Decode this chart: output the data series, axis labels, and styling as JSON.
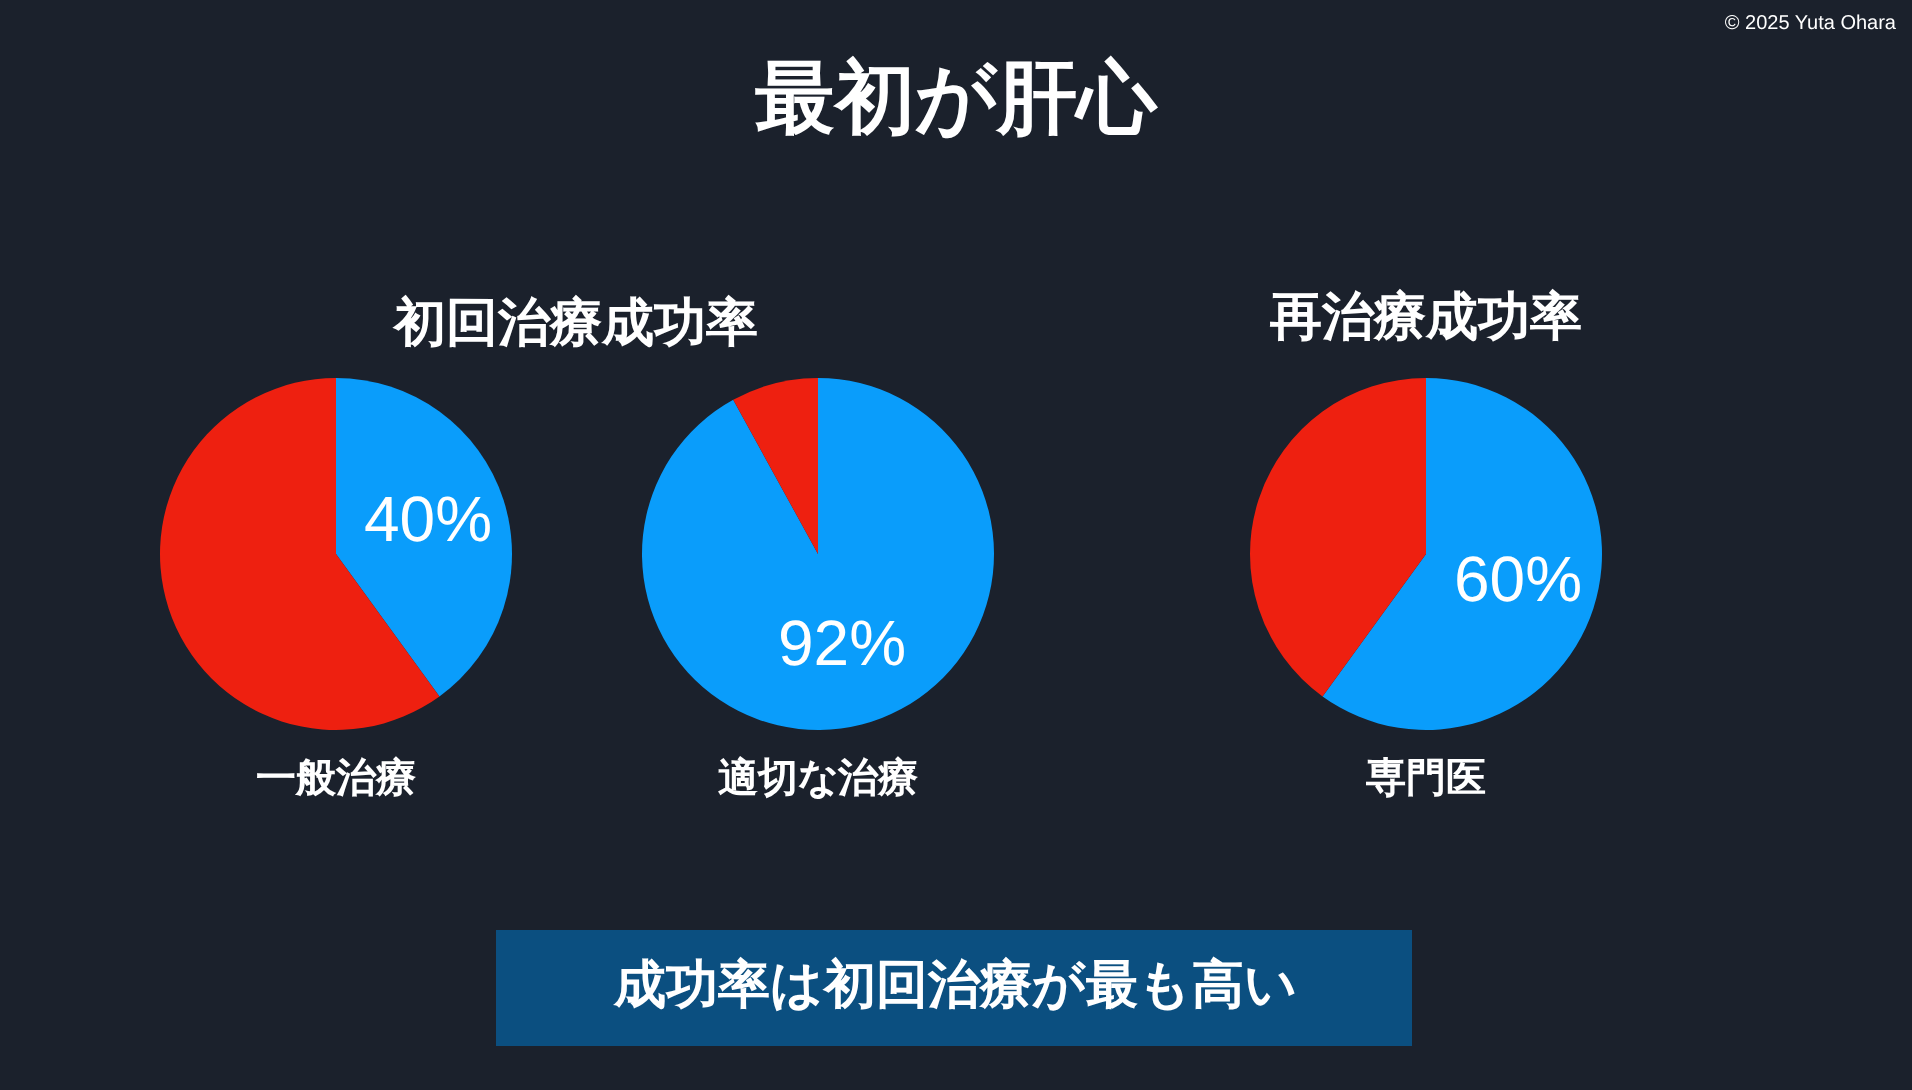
{
  "chart_data": [
    {
      "type": "pie",
      "subtitle": "初回治療成功率",
      "xlabel": "一般治療",
      "categories": [
        null,
        null
      ],
      "values": [
        40,
        60
      ],
      "colors": [
        "#0a9dfb",
        "#ee2010"
      ],
      "value_labels": [
        "40%",
        null
      ]
    },
    {
      "type": "pie",
      "title": "最初が肝心",
      "xlabel": "適切な治療",
      "categories": [
        null,
        null
      ],
      "values": [
        92,
        8
      ],
      "colors": [
        "#0a9dfb",
        "#ee2010"
      ],
      "value_labels": [
        "92%",
        null
      ],
      "annotations": [
        "成功率は初回治療が最も高い"
      ]
    },
    {
      "type": "pie",
      "title": "再治療成功率",
      "xlabel": "専門医",
      "categories": [
        null,
        null
      ],
      "values": [
        60,
        40
      ],
      "colors": [
        "#0a9dfb",
        "#ee2010"
      ],
      "value_labels": [
        "60%",
        null
      ],
      "annotations": [
        "© 2025 Yuta Ohara"
      ]
    }
  ]
}
